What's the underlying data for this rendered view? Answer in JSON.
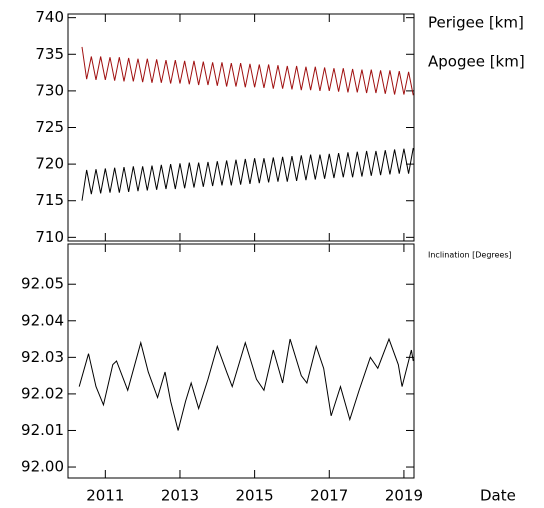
{
  "chart_data": [
    {
      "type": "line",
      "x": [
        2010.375,
        2010.5,
        2010.625,
        2010.75,
        2010.875,
        2011,
        2011.125,
        2011.25,
        2011.375,
        2011.5,
        2011.625,
        2011.75,
        2011.875,
        2012,
        2012.125,
        2012.25,
        2012.375,
        2012.5,
        2012.625,
        2012.75,
        2012.875,
        2013,
        2013.125,
        2013.25,
        2013.375,
        2013.5,
        2013.625,
        2013.75,
        2013.875,
        2014,
        2014.125,
        2014.25,
        2014.375,
        2014.5,
        2014.625,
        2014.75,
        2014.875,
        2015,
        2015.125,
        2015.25,
        2015.375,
        2015.5,
        2015.625,
        2015.75,
        2015.875,
        2016,
        2016.125,
        2016.25,
        2016.375,
        2016.5,
        2016.625,
        2016.75,
        2016.875,
        2017,
        2017.125,
        2017.25,
        2017.375,
        2017.5,
        2017.625,
        2017.75,
        2017.875,
        2018,
        2018.125,
        2018.25,
        2018.375,
        2018.5,
        2018.625,
        2018.75,
        2018.875,
        2019,
        2019.125,
        2019.25
      ],
      "series": [
        {
          "name": "Perigee [km]",
          "color": "#000000",
          "values": [
            715.0,
            719.2,
            715.9,
            719.3,
            716.0,
            719.4,
            716.1,
            719.5,
            716.1,
            719.6,
            716.2,
            719.7,
            716.3,
            719.7,
            716.4,
            719.8,
            716.5,
            719.9,
            716.6,
            720.0,
            716.6,
            720.1,
            716.7,
            720.2,
            716.8,
            720.2,
            716.9,
            720.3,
            717.0,
            720.4,
            717.1,
            720.5,
            717.1,
            720.6,
            717.2,
            720.7,
            717.3,
            720.8,
            717.4,
            720.8,
            717.5,
            720.9,
            717.6,
            721.0,
            717.6,
            721.1,
            717.7,
            721.2,
            717.8,
            721.3,
            717.9,
            721.3,
            718.0,
            721.4,
            718.1,
            721.5,
            718.2,
            721.6,
            718.2,
            721.7,
            718.3,
            721.8,
            718.4,
            721.8,
            718.5,
            721.9,
            718.6,
            722.0,
            718.7,
            722.1,
            718.7,
            722.2
          ]
        },
        {
          "name": "Apogee [km]",
          "color": "#a01010",
          "values": [
            736.0,
            731.6,
            734.7,
            731.5,
            734.7,
            731.5,
            734.6,
            731.4,
            734.6,
            731.3,
            734.5,
            731.3,
            734.4,
            731.2,
            734.4,
            731.1,
            734.3,
            731.1,
            734.2,
            731.0,
            734.2,
            731.0,
            734.1,
            730.9,
            734.1,
            730.8,
            734.0,
            730.8,
            733.9,
            730.7,
            733.9,
            730.6,
            733.8,
            730.6,
            733.8,
            730.5,
            733.7,
            730.5,
            733.6,
            730.4,
            733.6,
            730.3,
            733.5,
            730.3,
            733.4,
            730.2,
            733.4,
            730.1,
            733.3,
            730.1,
            733.3,
            730.0,
            733.2,
            730.0,
            733.1,
            729.9,
            733.1,
            729.8,
            733.0,
            729.8,
            732.9,
            729.7,
            732.9,
            729.7,
            732.8,
            729.6,
            732.8,
            729.5,
            732.7,
            729.5,
            732.6,
            729.4
          ]
        }
      ],
      "xlim": [
        2010.0,
        2019.27
      ],
      "ylim": [
        709.5,
        740.5
      ],
      "yticks": [
        710,
        715,
        720,
        725,
        730,
        735,
        740
      ]
    },
    {
      "type": "line",
      "x_label": "Date",
      "x": [
        2010.3,
        2010.55,
        2010.75,
        2010.95,
        2011.2,
        2011.3,
        2011.6,
        2011.95,
        2012.15,
        2012.4,
        2012.6,
        2012.75,
        2012.95,
        2013.15,
        2013.3,
        2013.5,
        2013.75,
        2014.0,
        2014.25,
        2014.4,
        2014.75,
        2015.05,
        2015.25,
        2015.5,
        2015.75,
        2015.95,
        2016.25,
        2016.4,
        2016.65,
        2016.85,
        2017.05,
        2017.3,
        2017.55,
        2017.8,
        2018.1,
        2018.3,
        2018.6,
        2018.85,
        2018.95,
        2019.2,
        2019.25
      ],
      "series": [
        {
          "name": "Inclination [Degrees]",
          "color": "#000000",
          "values": [
            92.022,
            92.031,
            92.022,
            92.017,
            92.028,
            92.029,
            92.021,
            92.034,
            92.026,
            92.019,
            92.026,
            92.018,
            92.01,
            92.018,
            92.023,
            92.016,
            92.024,
            92.033,
            92.026,
            92.022,
            92.034,
            92.024,
            92.021,
            92.032,
            92.023,
            92.035,
            92.025,
            92.023,
            92.033,
            92.027,
            92.014,
            92.022,
            92.013,
            92.021,
            92.03,
            92.027,
            92.035,
            92.028,
            92.022,
            92.032,
            92.029
          ]
        }
      ],
      "xlim": [
        2010.0,
        2019.27
      ],
      "xticks": [
        2011,
        2013,
        2015,
        2017,
        2019
      ],
      "ylim": [
        91.997,
        92.061
      ],
      "yticks": [
        {
          "value": 92,
          "label": "92.00"
        },
        92.01,
        92.02,
        92.03,
        92.04,
        92.05
      ]
    }
  ]
}
